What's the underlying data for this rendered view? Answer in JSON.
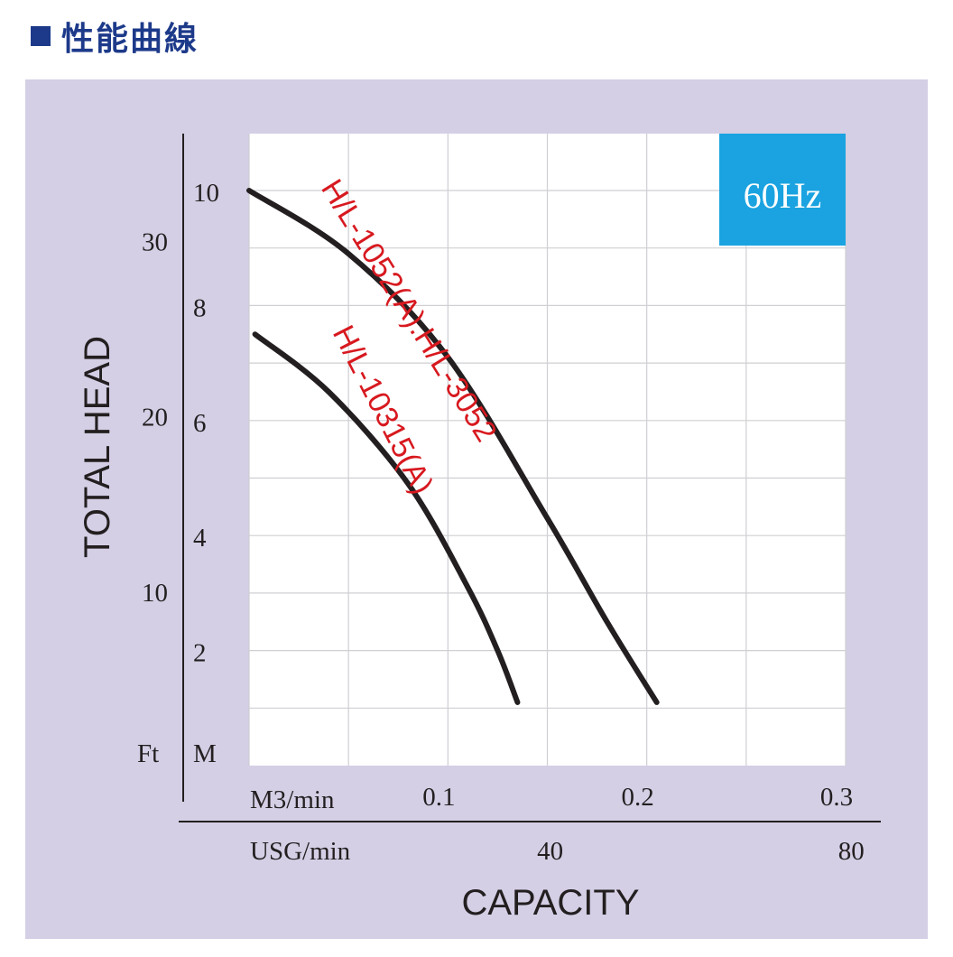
{
  "header": {
    "title": "性能曲線"
  },
  "chart_data": {
    "type": "line",
    "frequency_badge": "60Hz",
    "colors": {
      "panel": "#d4cfe5",
      "plot": "#ffffff",
      "grid": "#cfcfd4",
      "curve": "#231f20",
      "label": "#d7191f",
      "badge": "#1aa3e0",
      "header": "#1d3a8a"
    },
    "xlabel": "CAPACITY",
    "ylabel": "TOTAL HEAD",
    "x_unit_primary": "M3/min",
    "x_unit_secondary": "USG/min",
    "y_unit_primary": "M",
    "y_unit_secondary": "Ft",
    "xlim": [
      0,
      0.3
    ],
    "ylim": [
      0,
      11.5
    ],
    "x_ticks_primary": [
      "0.1",
      "0.2",
      "0.3"
    ],
    "x_ticks_secondary": [
      {
        "label": "40",
        "value": 40
      },
      {
        "label": "80",
        "value": 80
      }
    ],
    "y_ticks_primary": [
      "2",
      "4",
      "6",
      "8",
      "10"
    ],
    "y_ticks_secondary": [
      {
        "label": "10",
        "value": 10
      },
      {
        "label": "20",
        "value": 20
      },
      {
        "label": "30",
        "value": 30
      }
    ],
    "series": [
      {
        "name": "H/L-1052(A).H/L-3052",
        "x": [
          0,
          0.05,
          0.1,
          0.15,
          0.18,
          0.205
        ],
        "y": [
          10,
          8.9,
          7.1,
          4.3,
          2.5,
          1.1
        ]
      },
      {
        "name": "H/L-10315(A)",
        "x": [
          0.003,
          0.04,
          0.08,
          0.11,
          0.125,
          0.135
        ],
        "y": [
          7.5,
          6.5,
          4.9,
          3.1,
          2.0,
          1.1
        ]
      }
    ]
  }
}
